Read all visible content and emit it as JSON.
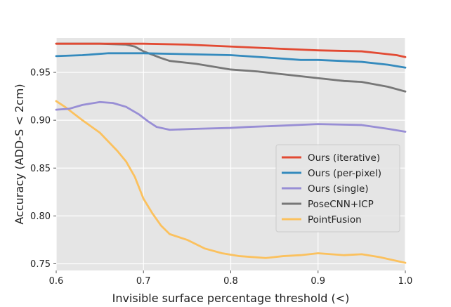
{
  "chart_data": {
    "type": "line",
    "title": "",
    "xlabel": "Invisible surface percentage threshold (<)",
    "ylabel": "Accuracy (ADD-S < 2cm)",
    "xlim": [
      0.6,
      1.0
    ],
    "ylim": [
      0.743,
      0.986
    ],
    "xticks": [
      0.6,
      0.7,
      0.8,
      0.9,
      1.0
    ],
    "xtick_labels": [
      "0.6",
      "0.7",
      "0.8",
      "0.9",
      "1.0"
    ],
    "yticks": [
      0.75,
      0.8,
      0.85,
      0.9,
      0.95
    ],
    "ytick_labels": [
      "0.75",
      "0.80",
      "0.85",
      "0.90",
      "0.95"
    ],
    "grid": true,
    "legend_position": "center-right",
    "background": "#e5e5e5",
    "series": [
      {
        "name": "Ours (iterative)",
        "color": "#e24a33",
        "points": [
          [
            0.6,
            0.98
          ],
          [
            0.65,
            0.98
          ],
          [
            0.7,
            0.98
          ],
          [
            0.75,
            0.979
          ],
          [
            0.8,
            0.977
          ],
          [
            0.85,
            0.975
          ],
          [
            0.9,
            0.973
          ],
          [
            0.95,
            0.972
          ],
          [
            0.97,
            0.97
          ],
          [
            0.99,
            0.968
          ],
          [
            1.0,
            0.966
          ]
        ]
      },
      {
        "name": "Ours (per-pixel)",
        "color": "#348abd",
        "points": [
          [
            0.6,
            0.967
          ],
          [
            0.63,
            0.968
          ],
          [
            0.66,
            0.97
          ],
          [
            0.68,
            0.97
          ],
          [
            0.7,
            0.97
          ],
          [
            0.75,
            0.969
          ],
          [
            0.8,
            0.968
          ],
          [
            0.85,
            0.965
          ],
          [
            0.88,
            0.963
          ],
          [
            0.9,
            0.963
          ],
          [
            0.95,
            0.961
          ],
          [
            0.98,
            0.958
          ],
          [
            1.0,
            0.955
          ]
        ]
      },
      {
        "name": "Ours (single)",
        "color": "#988ed5",
        "points": [
          [
            0.6,
            0.911
          ],
          [
            0.615,
            0.912
          ],
          [
            0.63,
            0.916
          ],
          [
            0.65,
            0.919
          ],
          [
            0.665,
            0.918
          ],
          [
            0.68,
            0.914
          ],
          [
            0.695,
            0.906
          ],
          [
            0.705,
            0.899
          ],
          [
            0.715,
            0.893
          ],
          [
            0.73,
            0.89
          ],
          [
            0.76,
            0.891
          ],
          [
            0.8,
            0.892
          ],
          [
            0.82,
            0.893
          ],
          [
            0.85,
            0.894
          ],
          [
            0.9,
            0.896
          ],
          [
            0.95,
            0.895
          ],
          [
            0.98,
            0.891
          ],
          [
            1.0,
            0.888
          ]
        ]
      },
      {
        "name": "PoseCNN+ICP",
        "color": "#777777",
        "points": [
          [
            0.6,
            0.98
          ],
          [
            0.65,
            0.98
          ],
          [
            0.68,
            0.979
          ],
          [
            0.69,
            0.977
          ],
          [
            0.7,
            0.972
          ],
          [
            0.72,
            0.965
          ],
          [
            0.73,
            0.962
          ],
          [
            0.76,
            0.959
          ],
          [
            0.78,
            0.956
          ],
          [
            0.8,
            0.953
          ],
          [
            0.83,
            0.951
          ],
          [
            0.85,
            0.949
          ],
          [
            0.88,
            0.946
          ],
          [
            0.9,
            0.944
          ],
          [
            0.93,
            0.941
          ],
          [
            0.95,
            0.94
          ],
          [
            0.98,
            0.935
          ],
          [
            1.0,
            0.93
          ]
        ]
      },
      {
        "name": "PointFusion",
        "color": "#fbc15e",
        "points": [
          [
            0.6,
            0.92
          ],
          [
            0.61,
            0.914
          ],
          [
            0.63,
            0.9
          ],
          [
            0.65,
            0.887
          ],
          [
            0.67,
            0.868
          ],
          [
            0.68,
            0.857
          ],
          [
            0.69,
            0.841
          ],
          [
            0.7,
            0.818
          ],
          [
            0.71,
            0.803
          ],
          [
            0.72,
            0.79
          ],
          [
            0.73,
            0.781
          ],
          [
            0.75,
            0.775
          ],
          [
            0.77,
            0.766
          ],
          [
            0.79,
            0.761
          ],
          [
            0.81,
            0.758
          ],
          [
            0.84,
            0.756
          ],
          [
            0.86,
            0.758
          ],
          [
            0.88,
            0.759
          ],
          [
            0.9,
            0.761
          ],
          [
            0.93,
            0.759
          ],
          [
            0.95,
            0.76
          ],
          [
            0.97,
            0.757
          ],
          [
            0.99,
            0.753
          ],
          [
            1.0,
            0.751
          ]
        ]
      }
    ]
  }
}
